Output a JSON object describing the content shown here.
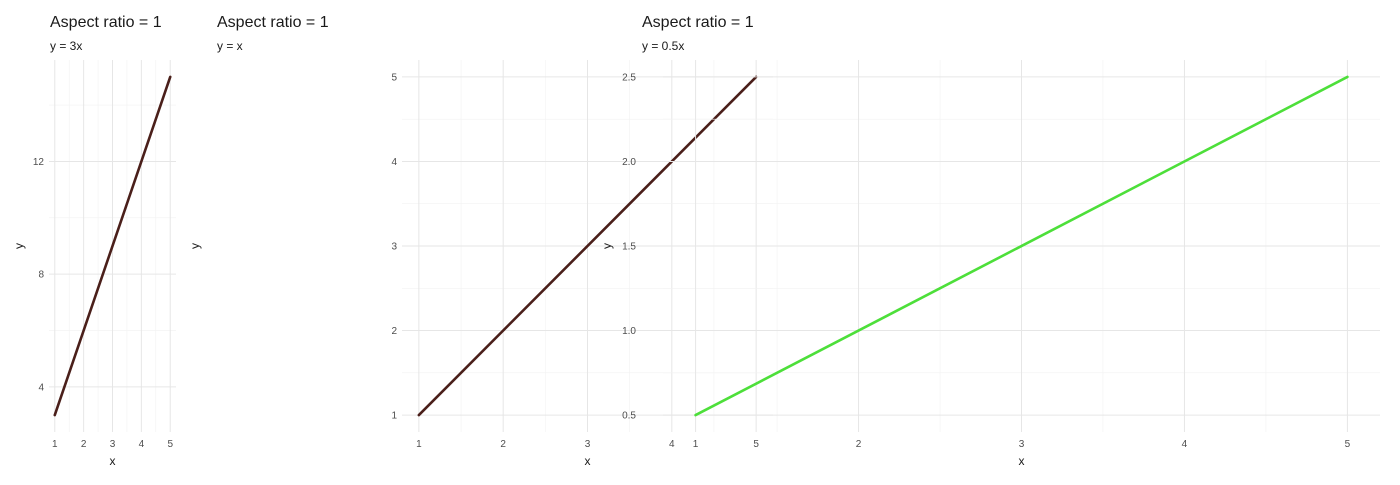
{
  "chart_data": [
    {
      "type": "line",
      "title": "Aspect ratio = 1",
      "subtitle": "y = 3x",
      "xlabel": "x",
      "ylabel": "y",
      "xlim": [
        0.8,
        5.2
      ],
      "ylim": [
        2.4,
        15.6
      ],
      "xticks": [
        1,
        2,
        3,
        4,
        5
      ],
      "xtick_labels": [
        "1",
        "2",
        "3",
        "4",
        "5"
      ],
      "yticks": [
        4,
        8,
        12
      ],
      "ytick_labels": [
        "4",
        "8",
        "12"
      ],
      "grid": true,
      "series": [
        {
          "color": "#4a1f1a",
          "x": [
            1,
            5
          ],
          "y": [
            3,
            15
          ]
        }
      ]
    },
    {
      "type": "line",
      "title": "Aspect ratio = 1",
      "subtitle": "y = x",
      "xlabel": "x",
      "ylabel": "y",
      "xlim": [
        0.8,
        5.2
      ],
      "ylim": [
        0.8,
        5.2
      ],
      "xticks": [
        1,
        2,
        3,
        4,
        5
      ],
      "xtick_labels": [
        "1",
        "2",
        "3",
        "4",
        "5"
      ],
      "yticks": [
        1,
        2,
        3,
        4,
        5
      ],
      "ytick_labels": [
        "1",
        "2",
        "3",
        "4",
        "5"
      ],
      "grid": true,
      "series": [
        {
          "color": "#4a1f1a",
          "x": [
            1,
            5
          ],
          "y": [
            1,
            5
          ]
        }
      ]
    },
    {
      "type": "line",
      "title": "Aspect ratio = 1",
      "subtitle": "y = 0.5x",
      "xlabel": "x",
      "ylabel": "y",
      "xlim": [
        0.8,
        5.2
      ],
      "ylim": [
        0.4,
        2.6
      ],
      "xticks": [
        1,
        2,
        3,
        4,
        5
      ],
      "xtick_labels": [
        "1",
        "2",
        "3",
        "4",
        "5"
      ],
      "yticks": [
        0.5,
        1.0,
        1.5,
        2.0,
        2.5
      ],
      "ytick_labels": [
        "0.5",
        "1.0",
        "1.5",
        "2.0",
        "2.5"
      ],
      "grid": true,
      "series": [
        {
          "color": "#4ddf3a",
          "x": [
            1,
            5
          ],
          "y": [
            0.5,
            2.5
          ]
        }
      ]
    }
  ]
}
